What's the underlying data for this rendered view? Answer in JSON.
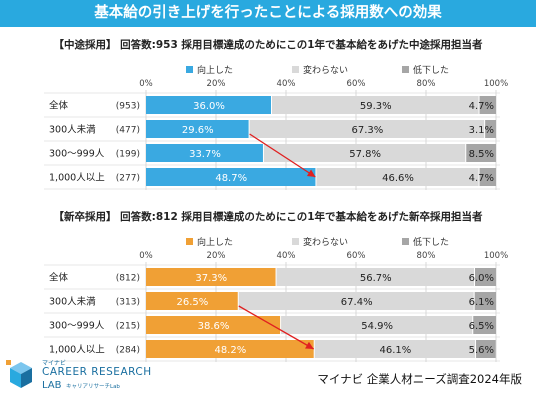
{
  "title": "基本給の引き上げを行ったことによる採用数への効果",
  "source_note": "マイナビ 企業人材ニーズ調査2024年版",
  "logo": {
    "small": "マイナビ",
    "main": "CAREER RESEARCH",
    "sub": "LAB",
    "sub_jp": "キャリアリサーチLab"
  },
  "chart_data": [
    {
      "type": "bar",
      "orientation": "horizontal",
      "stacked": true,
      "title": "【中途採用】 回答数:953 採用目標達成のためにこの1年で基本給をあげた中途採用担当者",
      "categories": [
        "全体",
        "300人未満",
        "300～999人",
        "1,000人以上"
      ],
      "n_labels": [
        "(953)",
        "(477)",
        "(199)",
        "(277)"
      ],
      "x_ticks": [
        "0%",
        "20%",
        "40%",
        "60%",
        "80%",
        "100%"
      ],
      "xlim": [
        0,
        100
      ],
      "legend_position": "top",
      "series": [
        {
          "name": "向上した",
          "color": "#3aa9e1",
          "values": [
            36.0,
            29.6,
            33.7,
            48.7
          ],
          "labels": [
            "36.0%",
            "29.6%",
            "33.7%",
            "48.7%"
          ]
        },
        {
          "name": "変わらない",
          "color": "#d9d9d9",
          "values": [
            59.3,
            67.3,
            57.8,
            46.6
          ],
          "labels": [
            "59.3%",
            "67.3%",
            "57.8%",
            "46.6%"
          ]
        },
        {
          "name": "低下した",
          "color": "#a6a6a6",
          "values": [
            4.7,
            3.1,
            8.5,
            4.7
          ],
          "labels": [
            "4.7%",
            "3.1%",
            "8.5%",
            "4.7%"
          ]
        }
      ]
    },
    {
      "type": "bar",
      "orientation": "horizontal",
      "stacked": true,
      "title": "【新卒採用】 回答数:812 採用目標達成のためにこの1年で基本給をあげた新卒採用担当者",
      "categories": [
        "全体",
        "300人未満",
        "300～999人",
        "1,000人以上"
      ],
      "n_labels": [
        "(812)",
        "(313)",
        "(215)",
        "(284)"
      ],
      "x_ticks": [
        "0%",
        "20%",
        "40%",
        "60%",
        "80%",
        "100%"
      ],
      "xlim": [
        0,
        100
      ],
      "legend_position": "top",
      "series": [
        {
          "name": "向上した",
          "color": "#f0a035",
          "values": [
            37.3,
            26.5,
            38.6,
            48.2
          ],
          "labels": [
            "37.3%",
            "26.5%",
            "38.6%",
            "48.2%"
          ]
        },
        {
          "name": "変わらない",
          "color": "#d9d9d9",
          "values": [
            56.7,
            67.4,
            54.9,
            46.1
          ],
          "labels": [
            "56.7%",
            "67.4%",
            "54.9%",
            "46.1%"
          ]
        },
        {
          "name": "低下した",
          "color": "#a6a6a6",
          "values": [
            6.0,
            6.1,
            6.5,
            5.6
          ],
          "labels": [
            "6.0%",
            "6.1%",
            "6.5%",
            "5.6%"
          ]
        }
      ]
    }
  ]
}
